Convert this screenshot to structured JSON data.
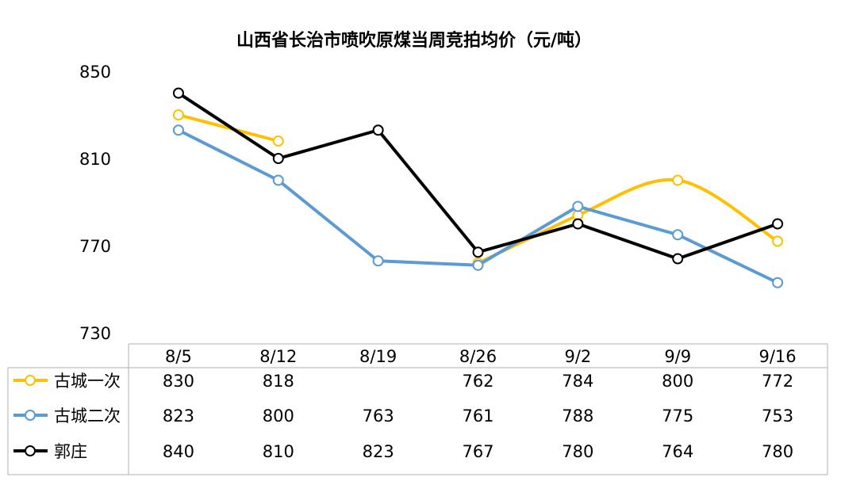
{
  "chart_data": {
    "type": "line",
    "title": "山西省长治市喷吹原煤当周竞拍均价（元/吨）",
    "categories": [
      "8/5",
      "8/12",
      "8/19",
      "8/26",
      "9/2",
      "9/9",
      "9/16"
    ],
    "ylim": [
      730,
      850
    ],
    "yticks": [
      "850",
      "810",
      "770",
      "730"
    ],
    "series": [
      {
        "name": "古城一次",
        "color": "#FFC000",
        "values": [
          830,
          818,
          null,
          762,
          784,
          800,
          772
        ],
        "smooth_tail": true
      },
      {
        "name": "古城二次",
        "color": "#5B9BD5",
        "values": [
          823,
          800,
          763,
          761,
          788,
          775,
          753
        ]
      },
      {
        "name": "郭庄",
        "color": "#000000",
        "values": [
          840,
          810,
          823,
          767,
          780,
          764,
          780
        ]
      }
    ],
    "legend_placement": "data-table",
    "grid": false
  }
}
